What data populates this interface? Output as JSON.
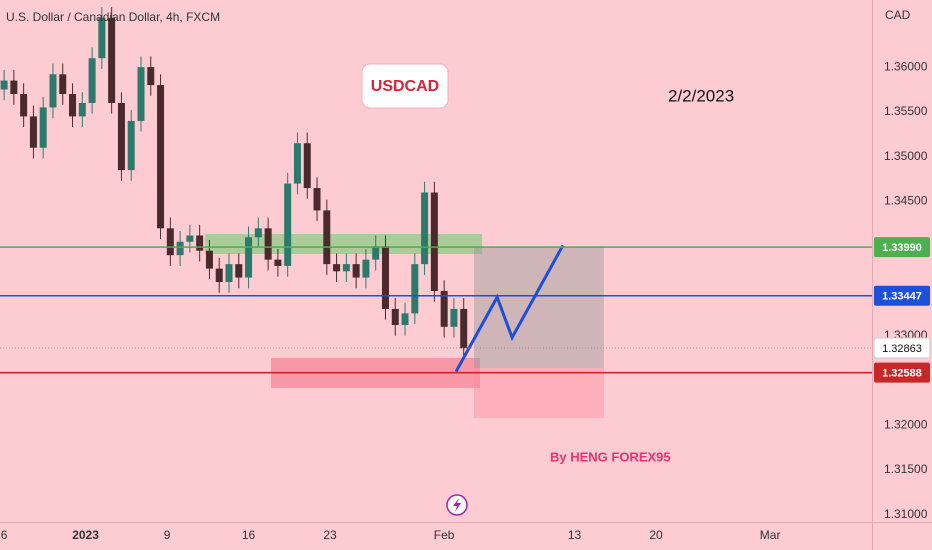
{
  "chart_data": {
    "type": "candlestick",
    "title": "U.S. Dollar / Canadian Dollar, 4h, FXCM",
    "currency": "CAD",
    "symbol_label": "USDCAD",
    "date_label": "2/2/2023",
    "author_label": "By HENG FOREX95",
    "xlim": [
      -0.25,
      53.25
    ],
    "ylim": [
      1.3092,
      1.3675
    ],
    "xticks": [
      {
        "value": 0,
        "label": "6"
      },
      {
        "value": 5,
        "label": "2023"
      },
      {
        "value": 10,
        "label": "9"
      },
      {
        "value": 15,
        "label": "16"
      },
      {
        "value": 20,
        "label": "23"
      },
      {
        "value": 27,
        "label": "Feb"
      },
      {
        "value": 35,
        "label": "13"
      },
      {
        "value": 40,
        "label": "20"
      },
      {
        "value": 47,
        "label": "Mar"
      }
    ],
    "yticks": [
      {
        "value": 1.36,
        "label": "1.36000"
      },
      {
        "value": 1.355,
        "label": "1.35500"
      },
      {
        "value": 1.35,
        "label": "1.35000"
      },
      {
        "value": 1.345,
        "label": "1.34500"
      },
      {
        "value": 1.33,
        "label": "1.33000"
      },
      {
        "value": 1.32,
        "label": "1.32000"
      },
      {
        "value": 1.315,
        "label": "1.31500"
      },
      {
        "value": 1.31,
        "label": "1.31000"
      }
    ],
    "up_color": "#2b7a6c",
    "down_color": "#4a2a2c",
    "x": [
      0,
      0.6,
      1.2,
      1.8,
      2.4,
      3,
      3.6,
      4.2,
      4.8,
      5.4,
      6,
      6.6,
      7.2,
      7.8,
      8.4,
      9,
      9.6,
      10.2,
      10.8,
      11.4,
      12,
      12.6,
      13.2,
      13.8,
      14.4,
      15,
      15.6,
      16.2,
      16.8,
      17.4,
      18,
      18.6,
      19.2,
      19.8,
      20.4,
      21,
      21.6,
      22.2,
      22.8,
      23.4,
      24,
      24.6,
      25.2,
      25.8,
      26.4,
      27,
      27.6,
      28.2
    ],
    "open": [
      1.3575,
      1.3585,
      1.357,
      1.3545,
      1.351,
      1.3555,
      1.3592,
      1.357,
      1.3545,
      1.356,
      1.361,
      1.3655,
      1.356,
      1.3485,
      1.354,
      1.36,
      1.358,
      1.342,
      1.339,
      1.3405,
      1.3412,
      1.3395,
      1.3375,
      1.336,
      1.338,
      1.3365,
      1.341,
      1.342,
      1.3385,
      1.3378,
      1.347,
      1.3515,
      1.3465,
      1.344,
      1.338,
      1.3372,
      1.338,
      1.3365,
      1.3385,
      1.34,
      1.333,
      1.3312,
      1.3325,
      1.338,
      1.346,
      1.335,
      1.331,
      1.333
    ],
    "high": [
      1.3597,
      1.3597,
      1.3582,
      1.3557,
      1.3567,
      1.3604,
      1.3604,
      1.3582,
      1.3572,
      1.3622,
      1.3667,
      1.3667,
      1.3572,
      1.3552,
      1.3612,
      1.3612,
      1.3592,
      1.3432,
      1.3417,
      1.3424,
      1.3424,
      1.3407,
      1.3387,
      1.3392,
      1.3392,
      1.3422,
      1.3432,
      1.3432,
      1.3397,
      1.3482,
      1.3527,
      1.3527,
      1.3477,
      1.3452,
      1.3392,
      1.3392,
      1.3392,
      1.3397,
      1.3412,
      1.3412,
      1.3342,
      1.3337,
      1.3392,
      1.3472,
      1.3472,
      1.3362,
      1.3342,
      1.3342
    ],
    "low": [
      1.3563,
      1.3558,
      1.3533,
      1.3498,
      1.3498,
      1.3543,
      1.3558,
      1.3533,
      1.3533,
      1.3548,
      1.3598,
      1.3548,
      1.3473,
      1.3473,
      1.3528,
      1.3568,
      1.3408,
      1.3378,
      1.3378,
      1.3393,
      1.3383,
      1.3363,
      1.3348,
      1.3348,
      1.3353,
      1.3353,
      1.3398,
      1.3373,
      1.3366,
      1.3366,
      1.3458,
      1.3453,
      1.3428,
      1.3368,
      1.336,
      1.336,
      1.3353,
      1.3353,
      1.3373,
      1.3318,
      1.33,
      1.33,
      1.3313,
      1.3368,
      1.3338,
      1.3298,
      1.3298,
      1.3274
    ],
    "close": [
      1.3585,
      1.357,
      1.3545,
      1.351,
      1.3555,
      1.3592,
      1.357,
      1.3545,
      1.356,
      1.361,
      1.3655,
      1.356,
      1.3485,
      1.354,
      1.36,
      1.358,
      1.342,
      1.339,
      1.3405,
      1.3412,
      1.3395,
      1.3375,
      1.336,
      1.338,
      1.3365,
      1.341,
      1.342,
      1.3385,
      1.3378,
      1.347,
      1.3515,
      1.3465,
      1.344,
      1.338,
      1.3372,
      1.338,
      1.3365,
      1.3385,
      1.34,
      1.333,
      1.3312,
      1.3325,
      1.338,
      1.346,
      1.335,
      1.331,
      1.333,
      1.3286
    ],
    "levels": [
      {
        "value": 1.3399,
        "label": "1.33990",
        "color": "#4caf50"
      },
      {
        "value": 1.33447,
        "label": "1.33447",
        "color": "#1e4fd8"
      },
      {
        "value": 1.32588,
        "label": "1.32588",
        "color": "#c62828"
      }
    ],
    "last_price": {
      "value": 1.32863,
      "label": "1.32863"
    },
    "zones": [
      {
        "x": [
          12.33,
          29.33
        ],
        "y": [
          1.34136,
          1.33913
        ],
        "color": "rgba(102,204,102,0.55)"
      },
      {
        "x": [
          16.38,
          29.2
        ],
        "y": [
          1.32752,
          1.32417
        ],
        "color": "rgba(240,110,130,0.55)"
      },
      {
        "x": [
          28.83,
          36.8
        ],
        "y": [
          1.3399,
          1.3264
        ],
        "color": "rgba(150,150,150,0.45)"
      },
      {
        "x": [
          28.83,
          36.8
        ],
        "y": [
          1.3264,
          1.32083
        ],
        "color": "rgba(255,140,160,0.45)"
      }
    ],
    "projection": {
      "x": [
        27.73,
        30.25,
        31.17,
        34.29
      ],
      "y": [
        1.326,
        1.3343,
        1.3298,
        1.3401
      ],
      "color": "#1e4fd8"
    }
  }
}
